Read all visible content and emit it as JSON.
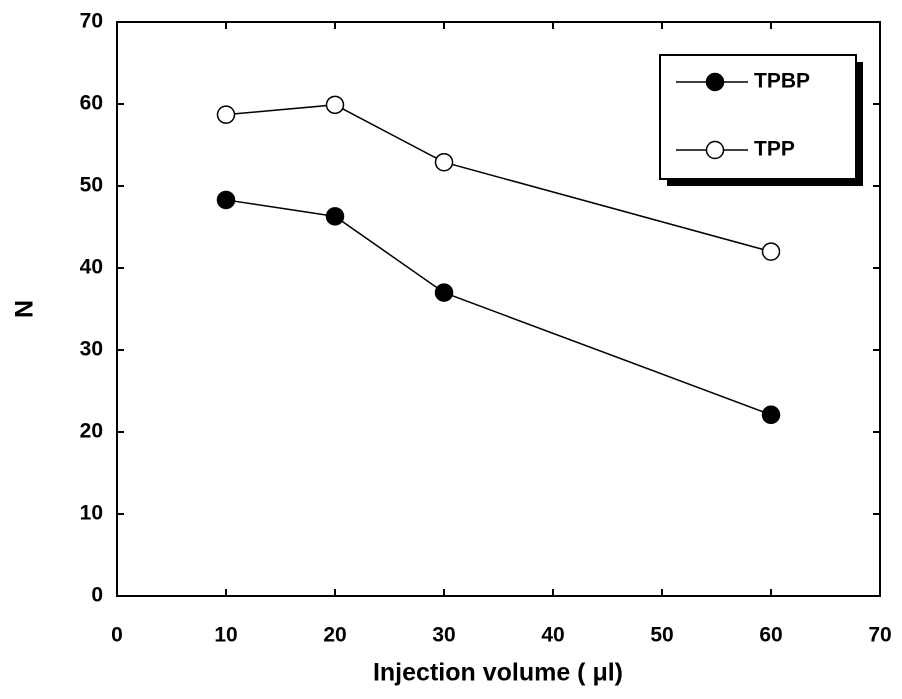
{
  "chart_data": {
    "type": "line",
    "x_label": "Injection volume (  μl)",
    "y_label": "N",
    "x": [
      10,
      20,
      30,
      60
    ],
    "series": [
      {
        "name": "TPBP",
        "color": "#000000",
        "marker": "filled",
        "values": [
          48.3,
          46.3,
          37.0,
          22.1
        ]
      },
      {
        "name": "TPP",
        "color": "#000000",
        "marker": "open",
        "values": [
          58.7,
          59.9,
          52.9,
          42.0
        ]
      }
    ],
    "xlim": [
      0,
      70
    ],
    "xticks": [
      0,
      10,
      20,
      30,
      40,
      50,
      60,
      70
    ],
    "ylim": [
      0,
      70
    ],
    "yticks": [
      0,
      10,
      20,
      30,
      40,
      50,
      60,
      70
    ],
    "legend": "upper right"
  }
}
